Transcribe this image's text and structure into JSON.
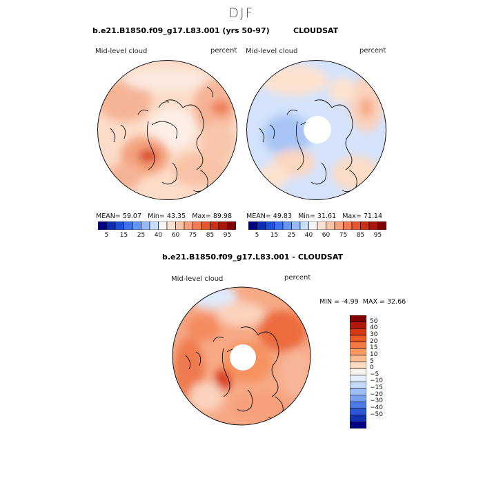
{
  "figure": {
    "title": "DJF"
  },
  "panels": [
    {
      "title": "b.e21.B1850.f09_g17.L83.001 (yrs 50-97)",
      "variable": "Mid-level cloud",
      "units": "percent",
      "stats": {
        "mean_label": "MEAN=",
        "mean": "59.07",
        "min_label": "Min=",
        "min": "43.35",
        "max_label": "Max=",
        "max": "89.98"
      }
    },
    {
      "title": "CLOUDSAT",
      "variable": "Mid-level cloud",
      "units": "percent",
      "stats": {
        "mean_label": "MEAN=",
        "mean": "49.83",
        "min_label": "Min=",
        "min": "31.61",
        "max_label": "Max=",
        "max": "71.14"
      }
    },
    {
      "title": "b.e21.B1850.f09_g17.L83.001 - CLOUDSAT",
      "variable": "Mid-level cloud",
      "units": "percent",
      "stats": {
        "min_label": "MIN =",
        "min": "-4.99",
        "max_label": "MAX =",
        "max": "32.66"
      }
    }
  ],
  "colorbars": {
    "absolute": {
      "labels": [
        "5",
        "15",
        "25",
        "40",
        "60",
        "75",
        "85",
        "95"
      ],
      "colors": [
        "#000080",
        "#0a2db4",
        "#1e50d7",
        "#3c73eb",
        "#6496f5",
        "#96b9fa",
        "#c8dcfc",
        "#f5f5f5",
        "#fde0cf",
        "#fbc3a5",
        "#f7a07a",
        "#f07c52",
        "#e4562d",
        "#c83214",
        "#a8170a",
        "#800000"
      ]
    },
    "difference": {
      "labels": [
        "50",
        "40",
        "30",
        "20",
        "15",
        "10",
        "5",
        "0",
        "−5",
        "−10",
        "−15",
        "−20",
        "−30",
        "−40",
        "−50"
      ],
      "colors": [
        "#800000",
        "#b01a0a",
        "#d6381a",
        "#ec5a2a",
        "#f47a45",
        "#f89a68",
        "#fbbc94",
        "#fddcc4",
        "#f7f2ee",
        "#e3eefc",
        "#c4dafa",
        "#9fbef6",
        "#7aa0f0",
        "#4f7ae6",
        "#2a55d4",
        "#1234b4",
        "#000080"
      ]
    }
  }
}
